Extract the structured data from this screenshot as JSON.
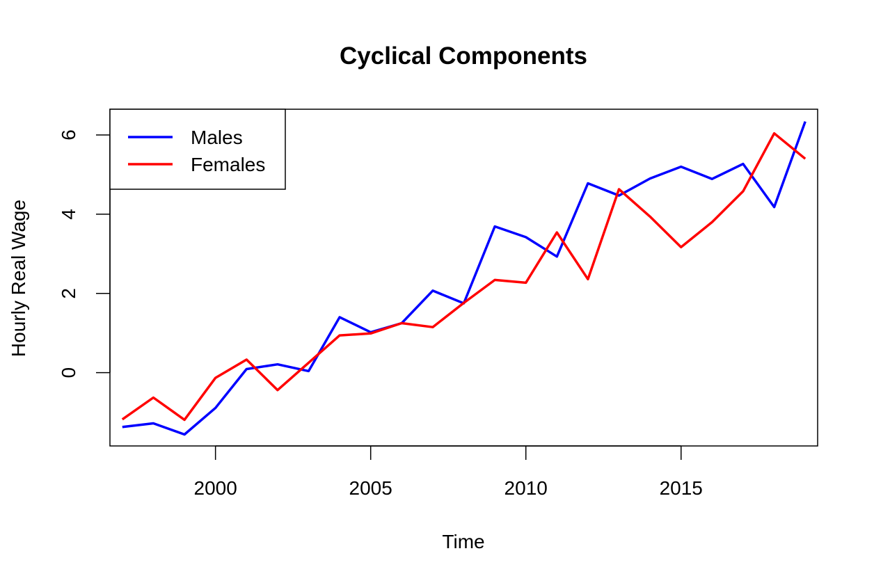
{
  "chart_data": {
    "type": "line",
    "title": "Cyclical Components",
    "xlabel": "Time",
    "ylabel": "Hourly Real Wage",
    "xlim": [
      1996.6,
      2019.4
    ],
    "ylim": [
      -1.85,
      6.65
    ],
    "x_ticks": [
      2000,
      2005,
      2010,
      2015
    ],
    "y_ticks": [
      0,
      2,
      4,
      6
    ],
    "grid": false,
    "legend_position": "top-left",
    "x": [
      1997,
      1998,
      1999,
      2000,
      2001,
      2002,
      2003,
      2004,
      2005,
      2006,
      2007,
      2008,
      2009,
      2010,
      2011,
      2012,
      2013,
      2014,
      2015,
      2016,
      2017,
      2018,
      2019
    ],
    "series": [
      {
        "name": "Males",
        "color": "#0000ff",
        "values": [
          -1.37,
          -1.28,
          -1.56,
          -0.89,
          0.09,
          0.21,
          0.04,
          1.4,
          1.02,
          1.25,
          2.07,
          1.75,
          3.69,
          3.42,
          2.93,
          4.78,
          4.47,
          4.9,
          5.2,
          4.89,
          5.27,
          4.18,
          6.34
        ]
      },
      {
        "name": "Females",
        "color": "#ff0000",
        "values": [
          -1.18,
          -0.63,
          -1.19,
          -0.13,
          0.33,
          -0.44,
          0.25,
          0.94,
          0.99,
          1.25,
          1.15,
          1.76,
          2.34,
          2.27,
          3.54,
          2.36,
          4.63,
          3.94,
          3.17,
          3.8,
          4.58,
          6.04,
          5.4
        ]
      }
    ]
  }
}
